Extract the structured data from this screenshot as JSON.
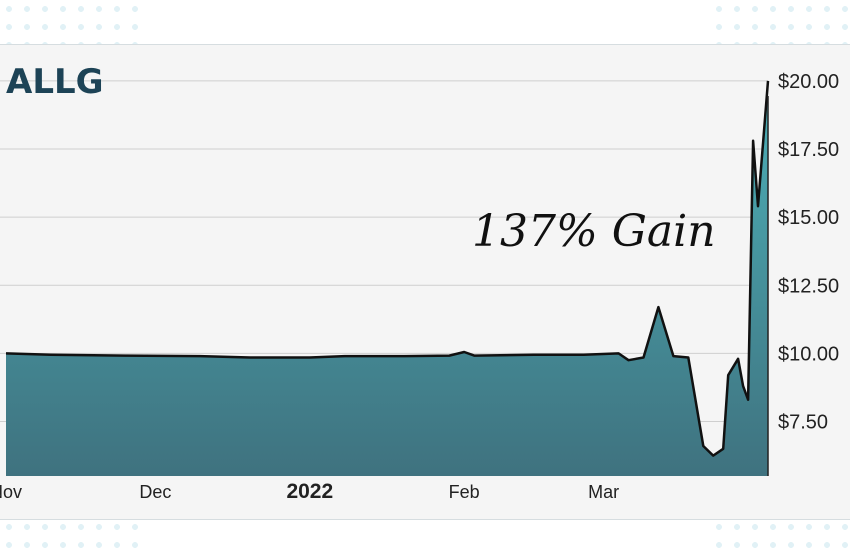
{
  "chart_data": {
    "type": "area",
    "title": "ALLG",
    "annotation": "137% Gain",
    "ylim": [
      5.5,
      21.5
    ],
    "y_ticks": [
      {
        "value": 7.5,
        "label": "$7.50"
      },
      {
        "value": 10,
        "label": "$10.00"
      },
      {
        "value": 12.5,
        "label": "$12.50"
      },
      {
        "value": 15,
        "label": "$15.00"
      },
      {
        "value": 17.5,
        "label": "$17.50"
      },
      {
        "value": 20,
        "label": "$20.00"
      }
    ],
    "x_ticks": [
      {
        "date": "2021-11-01",
        "label": "Nov",
        "bold": false
      },
      {
        "date": "2021-12-01",
        "label": "Dec",
        "bold": false
      },
      {
        "date": "2022-01-01",
        "label": "2022",
        "bold": true
      },
      {
        "date": "2022-02-01",
        "label": "Feb",
        "bold": false
      },
      {
        "date": "2022-03-01",
        "label": "Mar",
        "bold": false
      }
    ],
    "xlim": [
      "2021-11-01",
      "2022-04-03"
    ],
    "grid": true,
    "colors": {
      "fill_top": "#4cb0b8",
      "fill_bottom": "#3f727f",
      "line": "#111111",
      "grid": "#cfcfcf",
      "title": "#1d4356"
    },
    "points": [
      {
        "date": "2021-11-01",
        "price": 10.0
      },
      {
        "date": "2021-11-10",
        "price": 9.95
      },
      {
        "date": "2021-11-25",
        "price": 9.92
      },
      {
        "date": "2021-12-10",
        "price": 9.9
      },
      {
        "date": "2021-12-20",
        "price": 9.85
      },
      {
        "date": "2022-01-01",
        "price": 9.85
      },
      {
        "date": "2022-01-08",
        "price": 9.9
      },
      {
        "date": "2022-01-20",
        "price": 9.9
      },
      {
        "date": "2022-01-29",
        "price": 9.92
      },
      {
        "date": "2022-02-01",
        "price": 10.05
      },
      {
        "date": "2022-02-03",
        "price": 9.92
      },
      {
        "date": "2022-02-15",
        "price": 9.95
      },
      {
        "date": "2022-02-25",
        "price": 9.95
      },
      {
        "date": "2022-03-04",
        "price": 10.0
      },
      {
        "date": "2022-03-06",
        "price": 9.75
      },
      {
        "date": "2022-03-09",
        "price": 9.85
      },
      {
        "date": "2022-03-12",
        "price": 11.7
      },
      {
        "date": "2022-03-15",
        "price": 9.9
      },
      {
        "date": "2022-03-18",
        "price": 9.85
      },
      {
        "date": "2022-03-21",
        "price": 6.6
      },
      {
        "date": "2022-03-23",
        "price": 6.25
      },
      {
        "date": "2022-03-25",
        "price": 6.5
      },
      {
        "date": "2022-03-26",
        "price": 9.2
      },
      {
        "date": "2022-03-28",
        "price": 9.8
      },
      {
        "date": "2022-03-29",
        "price": 8.8
      },
      {
        "date": "2022-03-30",
        "price": 8.3
      },
      {
        "date": "2022-03-31",
        "price": 17.8
      },
      {
        "date": "2022-04-01",
        "price": 15.4
      },
      {
        "date": "2022-04-03",
        "price": 20.0
      }
    ]
  }
}
